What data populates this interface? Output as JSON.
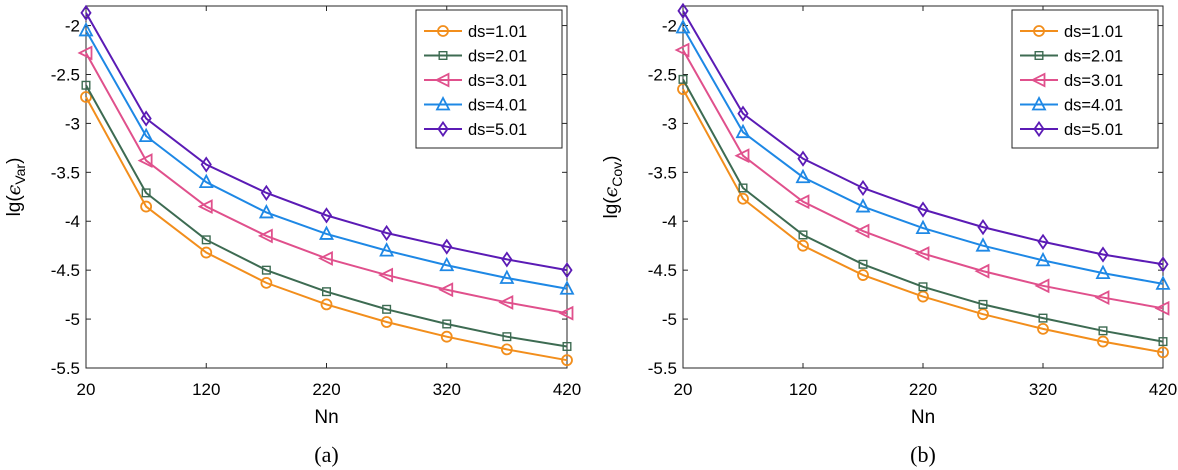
{
  "chart_data": [
    {
      "type": "line",
      "caption": "(a)",
      "xlabel": "Nn",
      "ylabel": {
        "prefix": "lg(",
        "symbol": "ϵ",
        "sub": "Var",
        "suffix": ")"
      },
      "xlim": [
        20,
        420
      ],
      "ylim": [
        -5.5,
        -1.8
      ],
      "xticks": [
        20,
        120,
        220,
        320,
        420
      ],
      "xtick_labels": [
        "20",
        "120",
        "220",
        "320",
        "420"
      ],
      "yticks": [
        -2,
        -2.5,
        -3,
        -3.5,
        -4,
        -4.5,
        -5,
        -5.5
      ],
      "ytick_labels": [
        "-2",
        "-2.5",
        "-3",
        "-3.5",
        "-4",
        "-4.5",
        "-5",
        "-5.5"
      ],
      "legend_position": "top-right",
      "x": [
        20,
        70,
        120,
        170,
        220,
        270,
        320,
        370,
        420
      ],
      "series": [
        {
          "name": "ds=1.01",
          "color": "#f28e1c",
          "marker": "circle",
          "values": [
            -2.73,
            -3.85,
            -4.32,
            -4.63,
            -4.85,
            -5.03,
            -5.18,
            -5.31,
            -5.42
          ]
        },
        {
          "name": "ds=2.01",
          "color": "#3d6b52",
          "marker": "square",
          "values": [
            -2.61,
            -3.71,
            -4.19,
            -4.5,
            -4.72,
            -4.9,
            -5.05,
            -5.18,
            -5.28
          ]
        },
        {
          "name": "ds=3.01",
          "color": "#e0508c",
          "marker": "triangle-left",
          "values": [
            -2.28,
            -3.38,
            -3.85,
            -4.15,
            -4.38,
            -4.55,
            -4.7,
            -4.83,
            -4.94
          ]
        },
        {
          "name": "ds=4.01",
          "color": "#1e88e5",
          "marker": "triangle-up",
          "values": [
            -2.05,
            -3.13,
            -3.6,
            -3.91,
            -4.13,
            -4.3,
            -4.45,
            -4.58,
            -4.69
          ]
        },
        {
          "name": "ds=5.01",
          "color": "#5b1bb5",
          "marker": "diamond",
          "values": [
            -1.87,
            -2.95,
            -3.42,
            -3.71,
            -3.94,
            -4.12,
            -4.26,
            -4.39,
            -4.5
          ]
        }
      ]
    },
    {
      "type": "line",
      "caption": "(b)",
      "xlabel": "Nn",
      "ylabel": {
        "prefix": "lg(",
        "symbol": "ϵ",
        "sub": "Cov",
        "suffix": ")"
      },
      "xlim": [
        20,
        420
      ],
      "ylim": [
        -5.5,
        -1.8
      ],
      "xticks": [
        20,
        120,
        220,
        320,
        420
      ],
      "xtick_labels": [
        "20",
        "120",
        "220",
        "320",
        "420"
      ],
      "yticks": [
        -2,
        -2.5,
        -3,
        -3.5,
        -4,
        -4.5,
        -5,
        -5.5
      ],
      "ytick_labels": [
        "-2",
        "-2.5",
        "-3",
        "-3.5",
        "-4",
        "-4.5",
        "-5",
        "-5.5"
      ],
      "legend_position": "top-right",
      "x": [
        20,
        70,
        120,
        170,
        220,
        270,
        320,
        370,
        420
      ],
      "series": [
        {
          "name": "ds=1.01",
          "color": "#f28e1c",
          "marker": "circle",
          "values": [
            -2.65,
            -3.77,
            -4.25,
            -4.55,
            -4.77,
            -4.95,
            -5.1,
            -5.23,
            -5.34
          ]
        },
        {
          "name": "ds=2.01",
          "color": "#3d6b52",
          "marker": "square",
          "values": [
            -2.55,
            -3.66,
            -4.14,
            -4.44,
            -4.67,
            -4.85,
            -4.99,
            -5.12,
            -5.23
          ]
        },
        {
          "name": "ds=3.01",
          "color": "#e0508c",
          "marker": "triangle-left",
          "values": [
            -2.25,
            -3.33,
            -3.8,
            -4.1,
            -4.33,
            -4.51,
            -4.66,
            -4.78,
            -4.89
          ]
        },
        {
          "name": "ds=4.01",
          "color": "#1e88e5",
          "marker": "triangle-up",
          "values": [
            -2.02,
            -3.09,
            -3.55,
            -3.85,
            -4.07,
            -4.25,
            -4.4,
            -4.53,
            -4.64
          ]
        },
        {
          "name": "ds=5.01",
          "color": "#5b1bb5",
          "marker": "diamond",
          "values": [
            -1.85,
            -2.9,
            -3.36,
            -3.66,
            -3.88,
            -4.06,
            -4.21,
            -4.34,
            -4.44
          ]
        }
      ]
    }
  ]
}
